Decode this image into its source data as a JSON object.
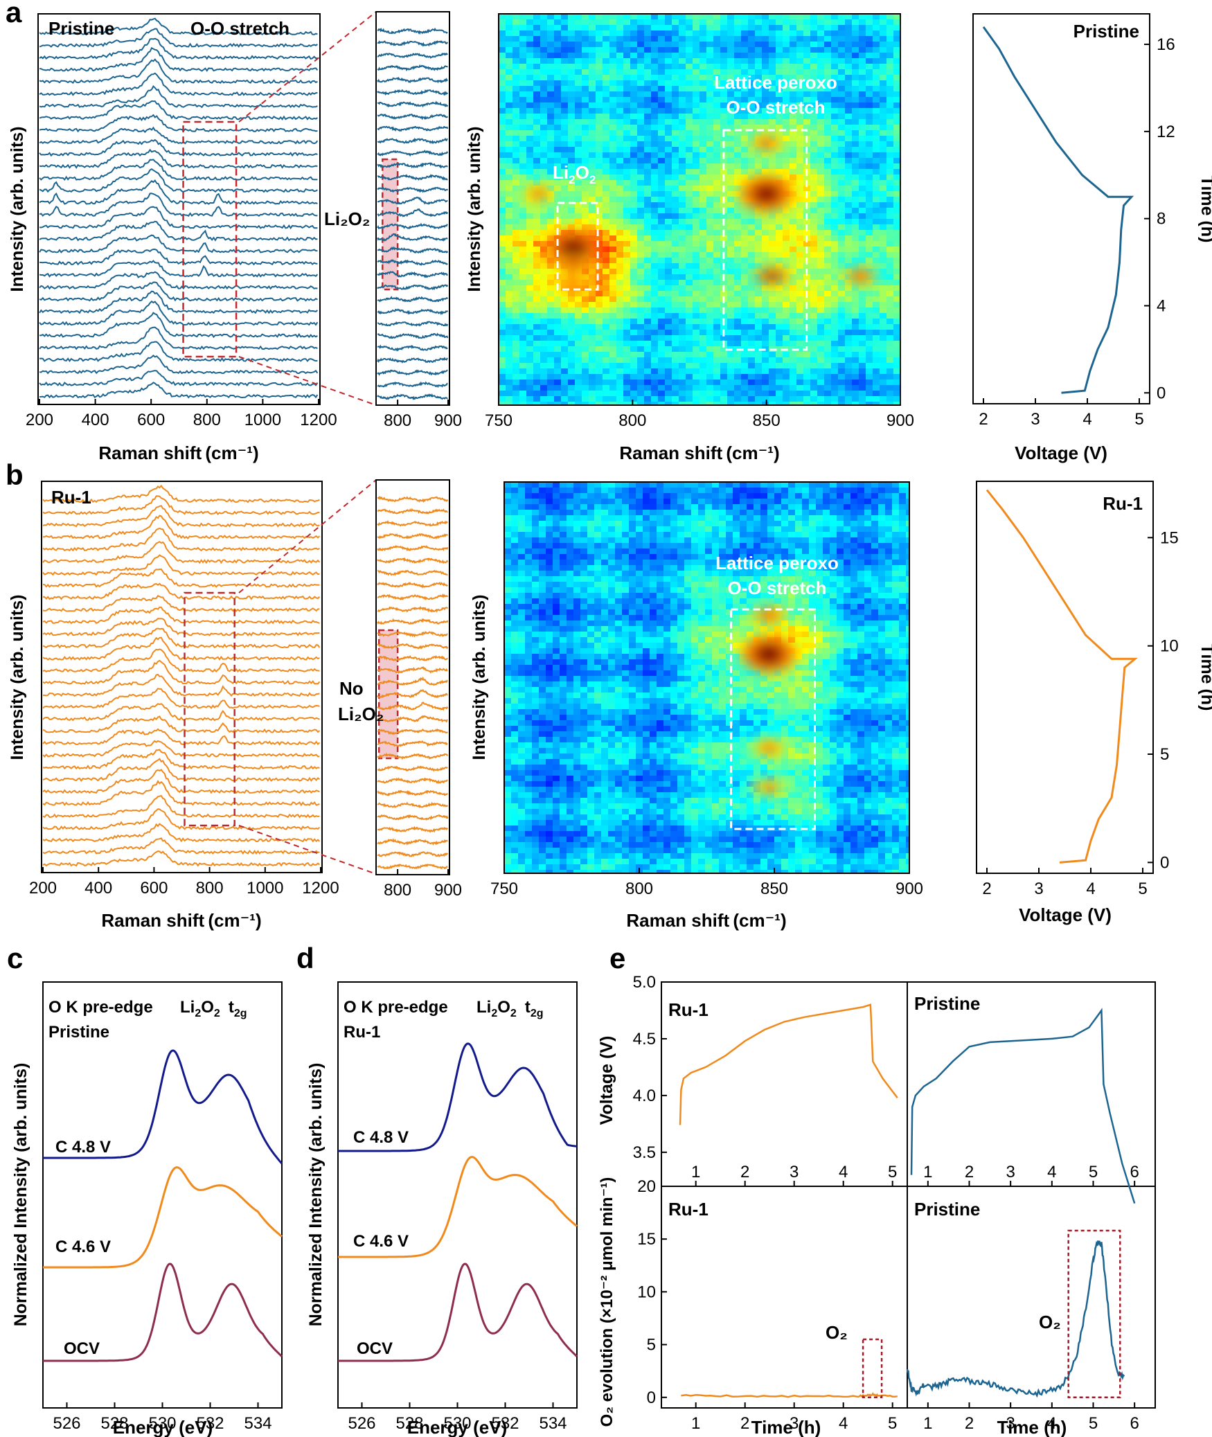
{
  "colors": {
    "pristine": "#1d6591",
    "ru": "#f08a1c",
    "c48": "#121a8c",
    "c46": "#f08a1c",
    "ocv": "#8f2d4e",
    "red": "#c0282d"
  },
  "panel_a": {
    "letter": "a",
    "raman": {
      "sample": "Pristine",
      "peak_label": "O-O stretch",
      "xlabel": "Raman shift (cm⁻¹)",
      "ylabel": "Intensity (arb. units)",
      "xticks": [
        "200",
        "400",
        "600",
        "800",
        "1000",
        "1200"
      ],
      "xlim": [
        200,
        1200
      ],
      "n_spectra": 31,
      "main_peak": 610,
      "side_peaks": [
        480,
        540
      ],
      "extra_peaks": [
        {
          "pos": 260,
          "rows": [
            15,
            16,
            17
          ]
        },
        {
          "pos": 790,
          "rows": [
            10,
            11,
            12,
            13
          ]
        },
        {
          "pos": 840,
          "rows": [
            15,
            16
          ]
        }
      ],
      "zoom_box_cm": [
        715,
        905
      ]
    },
    "zoom": {
      "label": "Li₂O₂",
      "xticks": [
        "800",
        "900"
      ],
      "xlim": [
        760,
        900
      ],
      "highlight_cm": [
        770,
        800
      ]
    },
    "heatmap": {
      "xlabel": "Raman shift (cm⁻¹)",
      "ylabel": "Intensity (arb. units)",
      "xticks": [
        "750",
        "800",
        "850",
        "900"
      ],
      "xlim": [
        750,
        900
      ],
      "label1": "Li",
      "label1_sub": "2",
      "label1_b": "O",
      "label1_sub2": "2",
      "label2_line1": "Lattice peroxo",
      "label2_line2": "O-O stretch",
      "box1_cm": [
        772,
        787
      ],
      "box2_cm": [
        834,
        865
      ],
      "hotspots": [
        {
          "x": 778,
          "y": 0.6,
          "level": 1.0
        },
        {
          "x": 778,
          "y": 0.64,
          "level": 0.7
        },
        {
          "x": 778,
          "y": 0.69,
          "level": 0.5
        },
        {
          "x": 850,
          "y": 0.46,
          "level": 0.95
        },
        {
          "x": 852,
          "y": 0.67,
          "level": 0.85
        },
        {
          "x": 850,
          "y": 0.33,
          "level": 0.55
        },
        {
          "x": 885,
          "y": 0.67,
          "level": 0.6
        },
        {
          "x": 765,
          "y": 0.46,
          "level": 0.45
        }
      ]
    },
    "voltage": {
      "label": "Pristine",
      "xlabel": "Voltage (V)",
      "ylabel": "Time (h)",
      "xticks": [
        "2",
        "3",
        "4",
        "5"
      ],
      "yticks": [
        "0",
        "4",
        "8",
        "12",
        "16"
      ],
      "xlim": [
        1.8,
        5.2
      ],
      "ylim": [
        -0.5,
        17.4
      ],
      "x": [
        3.5,
        3.95,
        4.05,
        4.2,
        4.4,
        4.55,
        4.62,
        4.65,
        4.7,
        4.85,
        4.4,
        3.9,
        3.4,
        3.0,
        2.6,
        2.3,
        2.0
      ],
      "y": [
        0,
        0.1,
        1.0,
        2.0,
        3.0,
        4.5,
        6.0,
        7.5,
        8.6,
        9.0,
        9.0,
        10.0,
        11.5,
        13.0,
        14.5,
        15.8,
        16.8
      ]
    }
  },
  "panel_b": {
    "letter": "b",
    "raman": {
      "sample": "Ru-1",
      "xlabel": "Raman shift (cm⁻¹)",
      "ylabel": "Intensity (arb. units)",
      "xticks": [
        "200",
        "400",
        "600",
        "800",
        "1000",
        "1200"
      ],
      "xlim": [
        200,
        1200
      ],
      "n_spectra": 31,
      "main_peak": 620,
      "side_peaks": [
        480,
        545
      ],
      "extra_peaks": [
        {
          "pos": 850,
          "rows": [
            10,
            11,
            12,
            13,
            14,
            15,
            16
          ]
        }
      ],
      "zoom_box_cm": [
        710,
        890
      ]
    },
    "zoom": {
      "label1": "No",
      "label2": "Li₂O₂",
      "xticks": [
        "800",
        "900"
      ],
      "xlim": [
        760,
        900
      ],
      "highlight_cm": [
        763,
        800
      ]
    },
    "heatmap": {
      "xlabel": "Raman shift (cm⁻¹)",
      "ylabel": "Intensity (arb. units)",
      "xticks": [
        "750",
        "800",
        "850",
        "900"
      ],
      "xlim": [
        750,
        900
      ],
      "label2_line1": "Lattice peroxo",
      "label2_line2": "O-O stretch",
      "box2_cm": [
        834,
        865
      ],
      "hotspots": [
        {
          "x": 848,
          "y": 0.44,
          "level": 1.0
        },
        {
          "x": 848,
          "y": 0.34,
          "level": 0.6
        },
        {
          "x": 848,
          "y": 0.68,
          "level": 0.45
        },
        {
          "x": 848,
          "y": 0.78,
          "level": 0.4
        }
      ]
    },
    "voltage": {
      "label": "Ru-1",
      "xlabel": "Voltage (V)",
      "ylabel": "Time (h)",
      "xticks": [
        "2",
        "3",
        "4",
        "5"
      ],
      "yticks": [
        "0",
        "5",
        "10",
        "15"
      ],
      "xlim": [
        1.8,
        5.2
      ],
      "ylim": [
        -0.5,
        17.6
      ],
      "x": [
        3.4,
        3.9,
        4.0,
        4.15,
        4.4,
        4.5,
        4.55,
        4.6,
        4.65,
        4.85,
        4.4,
        3.9,
        3.5,
        3.1,
        2.7,
        2.3,
        2.0
      ],
      "y": [
        0,
        0.1,
        1.0,
        2.0,
        3.0,
        4.5,
        6.0,
        7.5,
        9.0,
        9.4,
        9.4,
        10.5,
        12.0,
        13.5,
        15.0,
        16.3,
        17.2
      ]
    }
  },
  "panel_c": {
    "letter": "c",
    "title": "O K pre-edge",
    "sample": "Pristine",
    "peak_label": "Li",
    "peak_sub": "2",
    "peak_label_b": "O",
    "peak_sub2": "2",
    "t2g": "t",
    "t2g_sub": "2g",
    "xlabel": "Energy (eV)",
    "ylabel": "Normalized Intensity (arb. units)",
    "xticks": [
      "526",
      "528",
      "530",
      "532",
      "534"
    ],
    "xlim": [
      525,
      535
    ],
    "curves": [
      {
        "name": "C 4.8 V",
        "color_key": "c48"
      },
      {
        "name": "C 4.6 V",
        "color_key": "c46"
      },
      {
        "name": "OCV",
        "color_key": "ocv"
      }
    ]
  },
  "panel_d": {
    "letter": "d",
    "title": "O K pre-edge",
    "sample": "Ru-1",
    "peak_label": "Li",
    "peak_sub": "2",
    "peak_label_b": "O",
    "peak_sub2": "2",
    "t2g": "t",
    "t2g_sub": "2g",
    "xlabel": "Energy (eV)",
    "ylabel": "Normalized Intensity (arb. units)",
    "xticks": [
      "526",
      "528",
      "530",
      "532",
      "534"
    ],
    "xlim": [
      525,
      535
    ],
    "curves": [
      {
        "name": "C 4.8 V",
        "color_key": "c48"
      },
      {
        "name": "C 4.6 V",
        "color_key": "c46"
      },
      {
        "name": "OCV",
        "color_key": "ocv"
      }
    ]
  },
  "panel_e": {
    "letter": "e",
    "voltage_ylabel": "Voltage (V)",
    "voltage_yticks": [
      "3.5",
      "4.0",
      "4.5",
      "5.0"
    ],
    "voltage_ylim": [
      3.2,
      5.0
    ],
    "o2_ylabel": "O₂ evolution (×10⁻² μmol min⁻¹)",
    "o2_yticks": [
      "0",
      "5",
      "10",
      "15",
      "20"
    ],
    "o2_ylim": [
      -1,
      20
    ],
    "xlabel": "Time (h)",
    "left": {
      "label": "Ru-1",
      "xticks": [
        "1",
        "2",
        "3",
        "4",
        "5"
      ],
      "xlim": [
        0.3,
        5.3
      ],
      "voltage_t": [
        0.68,
        0.7,
        0.75,
        0.9,
        1.2,
        1.6,
        2.0,
        2.4,
        2.8,
        3.2,
        3.6,
        4.0,
        4.4,
        4.55,
        4.56,
        4.6,
        4.8,
        5.1
      ],
      "voltage_v": [
        3.74,
        4.05,
        4.15,
        4.2,
        4.25,
        4.35,
        4.48,
        4.58,
        4.65,
        4.69,
        4.72,
        4.75,
        4.78,
        4.8,
        4.72,
        4.3,
        4.15,
        3.98
      ],
      "o2_t": [
        0.7,
        1.5,
        2.5,
        3.5,
        4.3,
        4.5,
        4.6,
        4.7,
        5.1
      ],
      "o2_v": [
        0.2,
        0.15,
        0.1,
        0.1,
        0.1,
        0.2,
        0.3,
        0.2,
        0.1
      ],
      "o2_label": "O₂",
      "o2_box": [
        4.4,
        4.78,
        0,
        5.5
      ]
    },
    "right": {
      "label": "Pristine",
      "xticks": [
        "1",
        "2",
        "3",
        "4",
        "5",
        "6"
      ],
      "xlim": [
        0.5,
        6.5
      ],
      "voltage_t": [
        0.6,
        0.62,
        0.7,
        0.9,
        1.2,
        1.6,
        2.0,
        2.5,
        3.0,
        3.5,
        4.0,
        4.5,
        4.9,
        5.1,
        5.2,
        5.25,
        5.4,
        5.7,
        6.0
      ],
      "voltage_v": [
        3.3,
        3.9,
        4.0,
        4.08,
        4.15,
        4.3,
        4.43,
        4.47,
        4.48,
        4.49,
        4.5,
        4.52,
        4.6,
        4.7,
        4.75,
        4.1,
        3.85,
        3.4,
        3.05
      ],
      "o2_t": [
        0.5,
        0.6,
        0.75,
        0.9,
        1.1,
        1.3,
        1.5,
        1.8,
        2.1,
        2.4,
        2.7,
        3.0,
        3.3,
        3.6,
        3.9,
        4.2,
        4.4,
        4.6,
        4.8,
        5.0,
        5.1,
        5.2,
        5.3,
        5.45,
        5.6,
        5.75
      ],
      "o2_v": [
        2.8,
        0.8,
        0.5,
        1.2,
        1.0,
        1.2,
        1.5,
        1.8,
        1.4,
        1.4,
        1.0,
        0.8,
        0.5,
        0.4,
        0.6,
        1.0,
        2.0,
        4.0,
        8.0,
        13.0,
        14.8,
        14.5,
        11.0,
        5.0,
        2.2,
        2.0
      ],
      "o2_label": "O₂",
      "o2_box": [
        4.4,
        5.65,
        0,
        15.8
      ]
    }
  }
}
